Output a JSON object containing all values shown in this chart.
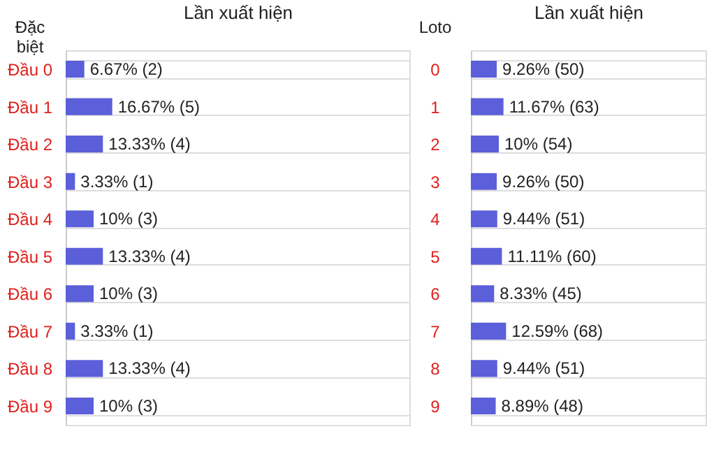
{
  "chart_data": [
    {
      "type": "bar",
      "orientation": "horizontal",
      "xlabel": "Lần xuất hiện",
      "ylabel": "Đặc biệt",
      "tick_labels": "y",
      "categories": [
        "Đầu 0",
        "Đầu 1",
        "Đầu 2",
        "Đầu 3",
        "Đầu 4",
        "Đầu 5",
        "Đầu 6",
        "Đầu 7",
        "Đầu 8",
        "Đầu 9"
      ],
      "values": [
        6.67,
        16.67,
        13.33,
        3.33,
        10,
        13.33,
        10,
        3.33,
        13.33,
        10
      ],
      "color": "#5b5fd9",
      "value_labels": [
        "6.67% (2)",
        "16.67% (5)",
        "13.33% (4)",
        "3.33% (1)",
        "10% (3)",
        "13.33% (4)",
        "10% (3)",
        "3.33% (1)",
        "13.33% (4)",
        "10% (3)"
      ],
      "grid": "y"
    },
    {
      "type": "bar",
      "orientation": "horizontal",
      "xlabel": "Lần xuất hiện",
      "ylabel": "Loto",
      "tick_labels": "y",
      "categories": [
        "0",
        "1",
        "2",
        "3",
        "4",
        "5",
        "6",
        "7",
        "8",
        "9"
      ],
      "values": [
        9.26,
        11.67,
        10,
        9.26,
        9.44,
        11.11,
        8.33,
        12.59,
        9.44,
        8.89
      ],
      "color": "#5b5fd9",
      "value_labels": [
        "9.26% (50)",
        "11.67% (63)",
        "10% (54)",
        "9.26% (50)",
        "9.44% (51)",
        "11.11% (60)",
        "8.33% (45)",
        "12.59% (68)",
        "9.44% (51)",
        "8.89% (48)"
      ],
      "grid": "y"
    }
  ]
}
